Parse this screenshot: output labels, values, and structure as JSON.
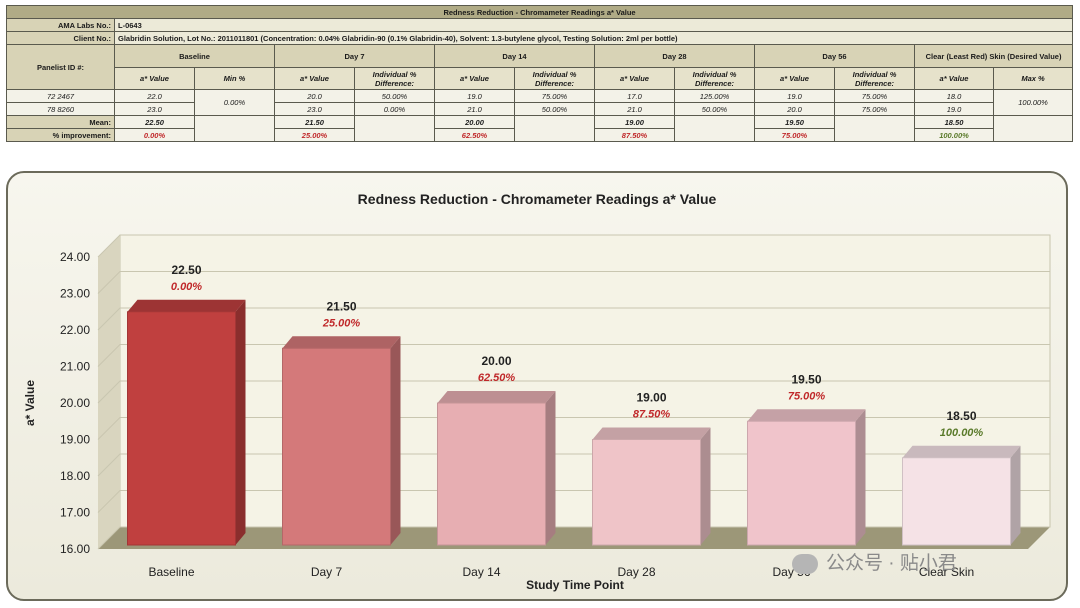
{
  "table": {
    "title": "Redness Reduction - Chromameter Readings a* Value",
    "lab_label": "AMA Labs No.:",
    "lab_value": "L-0643",
    "client_label": "Client No.:",
    "client_value": "Glabridin Solution, Lot No.: 2011011801 (Concentration: 0.04% Glabridin-90 (0.1% Glabridin-40), Solvent: 1.3-butylene glycol, Testing Solution: 2ml per bottle)",
    "panelist_label": "Panelist ID #:",
    "groups": [
      "Baseline",
      "Day 7",
      "Day 14",
      "Day 28",
      "Day 56",
      "Clear (Least Red) Skin (Desired Value)"
    ],
    "col_avalue": "a* Value",
    "col_min": "Min %",
    "col_ind": "Individual % Difference:",
    "col_max": "Max %",
    "rows": [
      {
        "id": "72 2467",
        "vals": [
          "22.0",
          "20.0",
          "50.00%",
          "19.0",
          "75.00%",
          "17.0",
          "125.00%",
          "19.0",
          "75.00%",
          "18.0"
        ]
      },
      {
        "id": "78 8260",
        "vals": [
          "23.0",
          "23.0",
          "0.00%",
          "21.0",
          "50.00%",
          "21.0",
          "50.00%",
          "20.0",
          "75.00%",
          "19.0"
        ]
      }
    ],
    "min_pct": "0.00%",
    "max_pct": "100.00%",
    "mean_label": "Mean:",
    "means": [
      "22.50",
      "21.50",
      "20.00",
      "19.00",
      "19.50",
      "18.50"
    ],
    "improve_label": "% improvement:",
    "improvements": [
      "0.00%",
      "25.00%",
      "62.50%",
      "87.50%",
      "75.00%",
      "100.00%"
    ]
  },
  "chart_data": {
    "type": "bar",
    "title": "Redness Reduction - Chromameter Readings a* Value",
    "xlabel": "Study Time Point",
    "ylabel": "a* Value",
    "categories": [
      "Baseline",
      "Day 7",
      "Day 14",
      "Day 28",
      "Day 56",
      "Clear Skin"
    ],
    "values": [
      22.5,
      21.5,
      20.0,
      19.0,
      19.5,
      18.5
    ],
    "value_labels": [
      "22.50",
      "21.50",
      "20.00",
      "19.00",
      "19.50",
      "18.50"
    ],
    "pct_labels": [
      "0.00%",
      "25.00%",
      "62.50%",
      "87.50%",
      "75.00%",
      "100.00%"
    ],
    "ylim": [
      16,
      24
    ],
    "yticks": [
      "16.00",
      "17.00",
      "18.00",
      "19.00",
      "20.00",
      "21.00",
      "22.00",
      "23.00",
      "24.00"
    ],
    "grid": true,
    "colors": [
      "#c0403f",
      "#d4797a",
      "#e7aeb2",
      "#efc4c8",
      "#f0c4cb",
      "#f5e2e6"
    ],
    "pct_colors": [
      "#c0282a",
      "#c0282a",
      "#c0282a",
      "#c0282a",
      "#c0282a",
      "#5a7a2a"
    ]
  },
  "watermark": "公众号 · 贴小君"
}
